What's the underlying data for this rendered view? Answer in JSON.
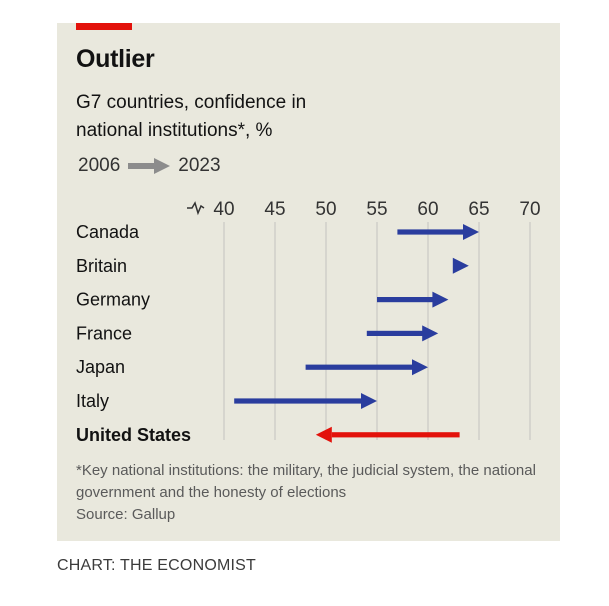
{
  "header": {
    "title": "Outlier",
    "subtitle": "G7 countries, confidence in national institutions*, %",
    "legend_start": "2006",
    "legend_end": "2023"
  },
  "footnote": {
    "note": "*Key national institutions: the military, the judicial system, the national government and the honesty of elections",
    "source": "Source: Gallup"
  },
  "credit": "CHART: THE ECONOMIST",
  "colors": {
    "increase": "#2a3d9e",
    "decrease": "#e3120b",
    "legend_arrow": "#8c8c8c",
    "accent_bar": "#e3120b"
  },
  "chart_data": {
    "type": "arrow-dumbbell",
    "title": "Outlier",
    "subtitle": "G7 countries, confidence in national institutions*, %",
    "xlabel": "",
    "ylabel": "",
    "xlim": [
      40,
      70
    ],
    "x_axis_broken": true,
    "xticks": [
      40,
      45,
      50,
      55,
      60,
      65,
      70
    ],
    "xtick_labels": [
      "40",
      "45",
      "50",
      "55",
      "60",
      "65",
      "70"
    ],
    "grid": "vertical",
    "series_labels": {
      "start": "2006",
      "end": "2023"
    },
    "categories": [
      "Canada",
      "Britain",
      "Germany",
      "France",
      "Japan",
      "Italy",
      "United States"
    ],
    "start_2006": [
      57,
      63,
      55,
      54,
      48,
      41,
      63
    ],
    "end_2023": [
      65,
      64,
      62,
      61,
      60,
      55,
      49
    ],
    "highlighted": [
      "United States"
    ]
  }
}
